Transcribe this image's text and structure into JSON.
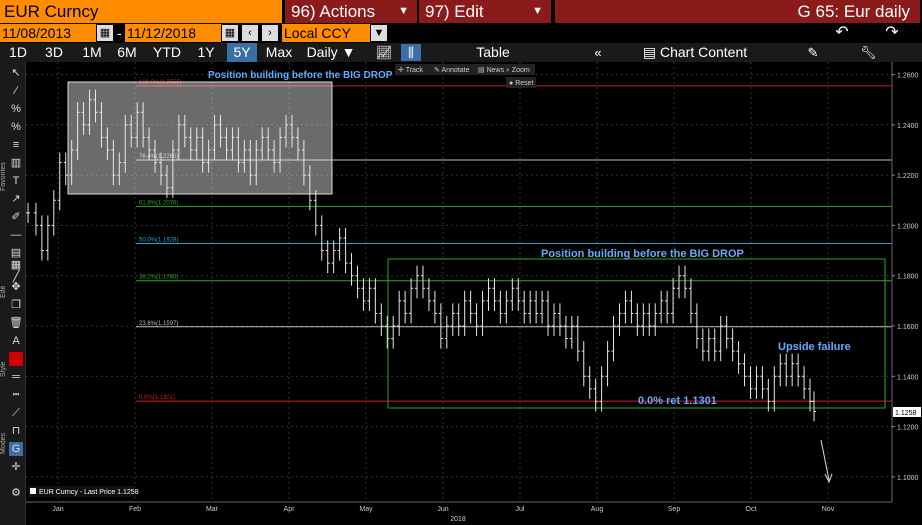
{
  "header": {
    "ticker": "EUR Curncy",
    "actions_label": "96) Actions",
    "edit_label": "97) Edit",
    "chart_title": "G 65: Eur daily"
  },
  "dates": {
    "start": "11/08/2013",
    "end": "11/12/2018",
    "currency": "Local CCY"
  },
  "toolbar": {
    "ranges": [
      "1D",
      "3D",
      "1M",
      "6M",
      "YTD",
      "1Y",
      "5Y",
      "Max"
    ],
    "active_range": "5Y",
    "frequency": "Daily",
    "table_label": "Table",
    "chart_content_label": "Chart Content"
  },
  "chart_controls": {
    "track": "Track",
    "annotate": "Annotate",
    "news": "News",
    "zoom": "Zoom",
    "reset": "Reset"
  },
  "side_labels": {
    "favorites": "Favorites",
    "edit": "Edit",
    "style": "Style",
    "modes": "Modes"
  },
  "legend": {
    "text": "EUR Curncy - Last Price 1.1258"
  },
  "chart_data": {
    "type": "ohlc",
    "x_labels": [
      "Jan",
      "Feb",
      "Mar",
      "Apr",
      "May",
      "Jun",
      "Jul",
      "Aug",
      "Sep",
      "Oct",
      "Nov"
    ],
    "year_label": "2018",
    "y_ticks": [
      "1.2600",
      "1.2400",
      "1.2200",
      "1.2000",
      "1.1800",
      "1.1600",
      "1.1400",
      "1.1200",
      "1.1000"
    ],
    "ylim": [
      1.09,
      1.265
    ],
    "last_price_label": "1.1258",
    "last_price": 1.1258,
    "fib_levels": [
      {
        "label": "100.0%(1.2555)",
        "value": 1.2555,
        "color": "#cc2222"
      },
      {
        "label": "76.4%(1.2260)",
        "value": 1.226,
        "color": "#bbbbbb"
      },
      {
        "label": "61.8%(1.2076)",
        "value": 1.2076,
        "color": "#22aa22"
      },
      {
        "label": "50.0%(1.1928)",
        "value": 1.1928,
        "color": "#22aacc"
      },
      {
        "label": "38.2%(1.1780)",
        "value": 1.178,
        "color": "#22aa22"
      },
      {
        "label": "23.6%(1.1597)",
        "value": 1.1597,
        "color": "#bbbbbb"
      },
      {
        "label": "0.0%(1.1301)",
        "value": 1.1301,
        "color": "#cc2222"
      }
    ],
    "annotations": [
      {
        "text": "Position building before the BIG DROP",
        "color": "#66aaff"
      },
      {
        "text": "Position building before the BIG DROP",
        "color": "#66aaff"
      },
      {
        "text": "Upside failure",
        "color": "#66aaff"
      },
      {
        "text": "0.0% ret 1.1301",
        "color": "#66aaff"
      }
    ],
    "price_path": [
      [
        0,
        1.205
      ],
      [
        8,
        1.2
      ],
      [
        14,
        1.19
      ],
      [
        20,
        1.2
      ],
      [
        26,
        1.21
      ],
      [
        32,
        1.225
      ],
      [
        38,
        1.22
      ],
      [
        44,
        1.23
      ],
      [
        50,
        1.245
      ],
      [
        56,
        1.24
      ],
      [
        62,
        1.25
      ],
      [
        68,
        1.245
      ],
      [
        74,
        1.235
      ],
      [
        80,
        1.23
      ],
      [
        86,
        1.22
      ],
      [
        92,
        1.225
      ],
      [
        98,
        1.24
      ],
      [
        104,
        1.235
      ],
      [
        110,
        1.245
      ],
      [
        116,
        1.235
      ],
      [
        122,
        1.23
      ],
      [
        128,
        1.225
      ],
      [
        134,
        1.22
      ],
      [
        140,
        1.215
      ],
      [
        146,
        1.23
      ],
      [
        152,
        1.24
      ],
      [
        158,
        1.235
      ],
      [
        164,
        1.23
      ],
      [
        170,
        1.235
      ],
      [
        176,
        1.225
      ],
      [
        182,
        1.23
      ],
      [
        188,
        1.24
      ],
      [
        194,
        1.235
      ],
      [
        200,
        1.23
      ],
      [
        206,
        1.235
      ],
      [
        212,
        1.225
      ],
      [
        218,
        1.23
      ],
      [
        224,
        1.22
      ],
      [
        230,
        1.23
      ],
      [
        236,
        1.235
      ],
      [
        242,
        1.23
      ],
      [
        248,
        1.225
      ],
      [
        254,
        1.235
      ],
      [
        260,
        1.24
      ],
      [
        266,
        1.235
      ],
      [
        272,
        1.23
      ],
      [
        278,
        1.22
      ],
      [
        284,
        1.21
      ],
      [
        290,
        1.2
      ],
      [
        296,
        1.19
      ],
      [
        302,
        1.185
      ],
      [
        308,
        1.19
      ],
      [
        314,
        1.195
      ],
      [
        320,
        1.185
      ],
      [
        326,
        1.18
      ],
      [
        332,
        1.175
      ],
      [
        338,
        1.17
      ],
      [
        344,
        1.175
      ],
      [
        350,
        1.165
      ],
      [
        356,
        1.16
      ],
      [
        362,
        1.155
      ],
      [
        368,
        1.16
      ],
      [
        374,
        1.17
      ],
      [
        380,
        1.165
      ],
      [
        386,
        1.175
      ],
      [
        392,
        1.18
      ],
      [
        398,
        1.175
      ],
      [
        404,
        1.17
      ],
      [
        410,
        1.165
      ],
      [
        416,
        1.155
      ],
      [
        422,
        1.16
      ],
      [
        428,
        1.165
      ],
      [
        434,
        1.16
      ],
      [
        440,
        1.17
      ],
      [
        446,
        1.165
      ],
      [
        452,
        1.16
      ],
      [
        458,
        1.17
      ],
      [
        464,
        1.175
      ],
      [
        470,
        1.17
      ],
      [
        476,
        1.165
      ],
      [
        482,
        1.17
      ],
      [
        488,
        1.175
      ],
      [
        494,
        1.17
      ],
      [
        500,
        1.165
      ],
      [
        506,
        1.17
      ],
      [
        512,
        1.165
      ],
      [
        518,
        1.17
      ],
      [
        524,
        1.16
      ],
      [
        530,
        1.165
      ],
      [
        536,
        1.16
      ],
      [
        542,
        1.155
      ],
      [
        548,
        1.16
      ],
      [
        554,
        1.15
      ],
      [
        560,
        1.14
      ],
      [
        566,
        1.135
      ],
      [
        572,
        1.13
      ],
      [
        578,
        1.14
      ],
      [
        584,
        1.15
      ],
      [
        590,
        1.16
      ],
      [
        596,
        1.165
      ],
      [
        602,
        1.17
      ],
      [
        608,
        1.165
      ],
      [
        614,
        1.16
      ],
      [
        620,
        1.165
      ],
      [
        626,
        1.16
      ],
      [
        632,
        1.165
      ],
      [
        638,
        1.17
      ],
      [
        644,
        1.165
      ],
      [
        650,
        1.175
      ],
      [
        656,
        1.18
      ],
      [
        662,
        1.175
      ],
      [
        668,
        1.165
      ],
      [
        674,
        1.155
      ],
      [
        680,
        1.15
      ],
      [
        686,
        1.155
      ],
      [
        692,
        1.15
      ],
      [
        698,
        1.16
      ],
      [
        704,
        1.155
      ],
      [
        710,
        1.15
      ],
      [
        716,
        1.145
      ],
      [
        722,
        1.14
      ],
      [
        728,
        1.135
      ],
      [
        734,
        1.14
      ],
      [
        740,
        1.135
      ],
      [
        746,
        1.13
      ],
      [
        752,
        1.14
      ],
      [
        758,
        1.145
      ],
      [
        764,
        1.14
      ],
      [
        770,
        1.145
      ],
      [
        776,
        1.14
      ],
      [
        782,
        1.135
      ],
      [
        788,
        1.13
      ],
      [
        792,
        1.126
      ]
    ]
  }
}
